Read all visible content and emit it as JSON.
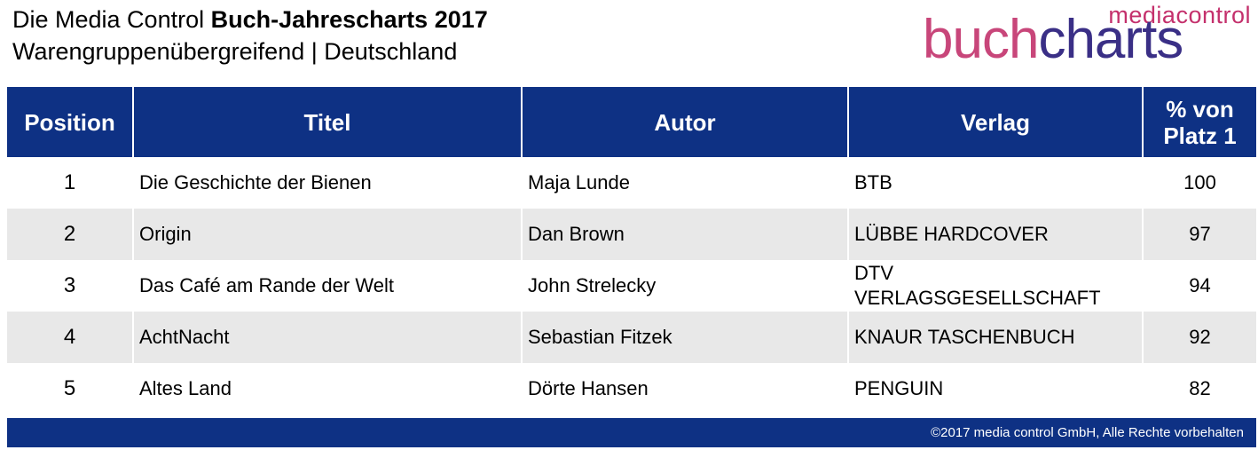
{
  "header": {
    "title_prefix": "Die Media Control ",
    "title_bold": "Buch-Jahrescharts 2017",
    "subtitle": "Warengruppenübergreifend | Deutschland"
  },
  "logo": {
    "media": "media",
    "control": "control",
    "buch": "buch",
    "charts": "charts"
  },
  "table": {
    "headers": {
      "position": "Position",
      "titel": "Titel",
      "autor": "Autor",
      "verlag": "Verlag",
      "pct_line1": "% von",
      "pct_line2": "Platz 1"
    },
    "rows": [
      {
        "position": "1",
        "titel": "Die Geschichte der Bienen",
        "autor": "Maja Lunde",
        "verlag": "BTB",
        "pct": "100"
      },
      {
        "position": "2",
        "titel": "Origin",
        "autor": "Dan Brown",
        "verlag": "LÜBBE HARDCOVER",
        "pct": "97"
      },
      {
        "position": "3",
        "titel": "Das Café am Rande der Welt",
        "autor": "John Strelecky",
        "verlag": "DTV VERLAGSGESELLSCHAFT",
        "pct": "94"
      },
      {
        "position": "4",
        "titel": "AchtNacht",
        "autor": "Sebastian Fitzek",
        "verlag": "KNAUR TASCHENBUCH",
        "pct": "92"
      },
      {
        "position": "5",
        "titel": "Altes Land",
        "autor": "Dörte Hansen",
        "verlag": "PENGUIN",
        "pct": "82"
      }
    ]
  },
  "footer": {
    "copyright": "©2017 media control GmbH, Alle Rechte vorbehalten"
  },
  "colors": {
    "header_blue": "#0e3184",
    "row_stripe": "#e8e8e8",
    "logo_pink": "#c8467a",
    "logo_purple": "#3a2f86"
  }
}
